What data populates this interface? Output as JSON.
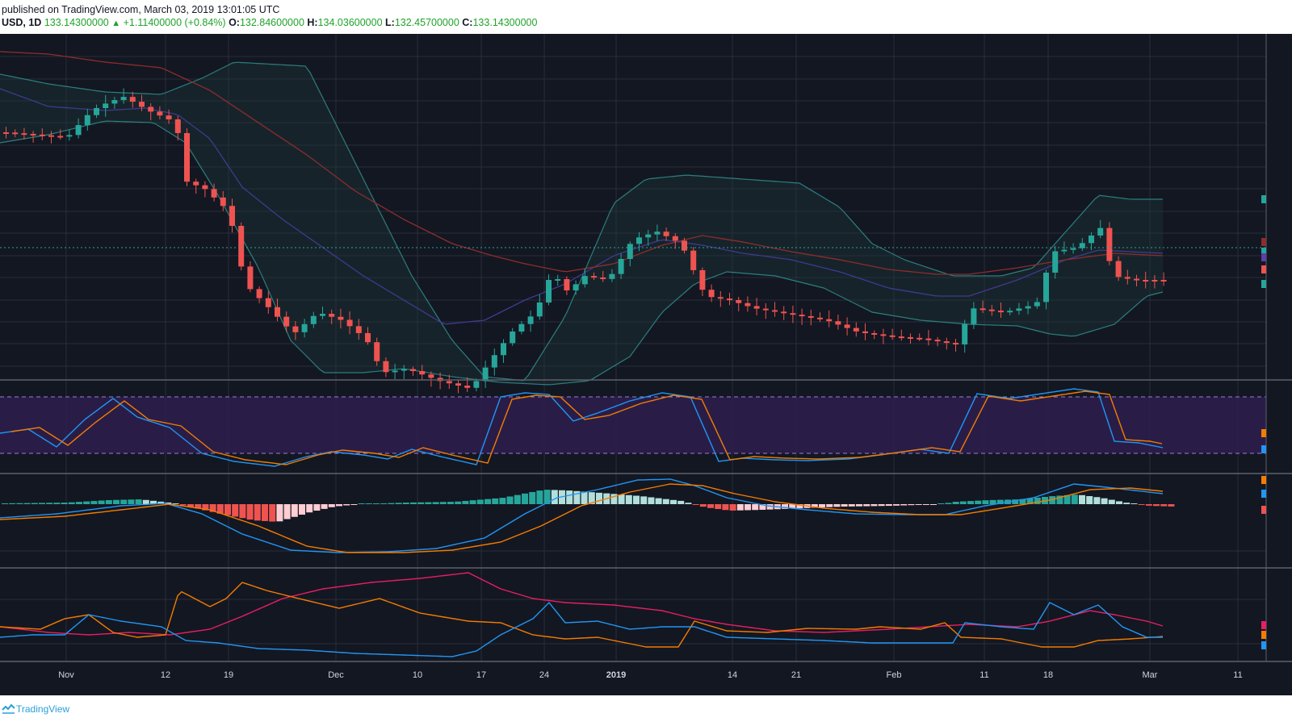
{
  "header": {
    "published": "published on TradingView.com, March 03, 2019 13:01:05 UTC",
    "symbol_tf": "USD, 1D",
    "last": "133.14300000",
    "change": "+1.11400000 (+0.84%)",
    "o_label": "O:",
    "o_value": "132.84600000",
    "h_label": "H:",
    "h_value": "134.03600000",
    "l_label": "L:",
    "l_value": "132.45700000",
    "c_label": "C:",
    "c_value": "133.14300000"
  },
  "x_axis": {
    "labels": [
      "Nov",
      "12",
      "19",
      "Dec",
      "10",
      "17",
      "24",
      "2019",
      "14",
      "21",
      "Feb",
      "11",
      "18",
      "Mar",
      "11"
    ]
  },
  "footer": {
    "brand": "TradingView",
    "logo_icon": "tradingview-logo-icon"
  },
  "colors": {
    "background": "#131722",
    "grid": "#2a2e39",
    "bull": "#26a69a",
    "bear": "#ef5350",
    "macd_hist_dark_green": "#26a69a",
    "macd_hist_light": "#b2dfdb",
    "macd_hist_pink": "#ffcdd2",
    "ma_fast": "#3f3a8f",
    "ma_slow": "#8b2d2d",
    "bollinger": "#2a7f80",
    "stoch_k": "#2196f3",
    "stoch_d": "#f57c00",
    "stoch_band": "#2e1f4f",
    "adx": "#e91e63"
  },
  "chart_data": {
    "type": "candlestick",
    "timeframe": "1D",
    "last_price": 133.143,
    "panes": [
      "price",
      "stochastic RSI",
      "MACD",
      "directional movement"
    ]
  }
}
